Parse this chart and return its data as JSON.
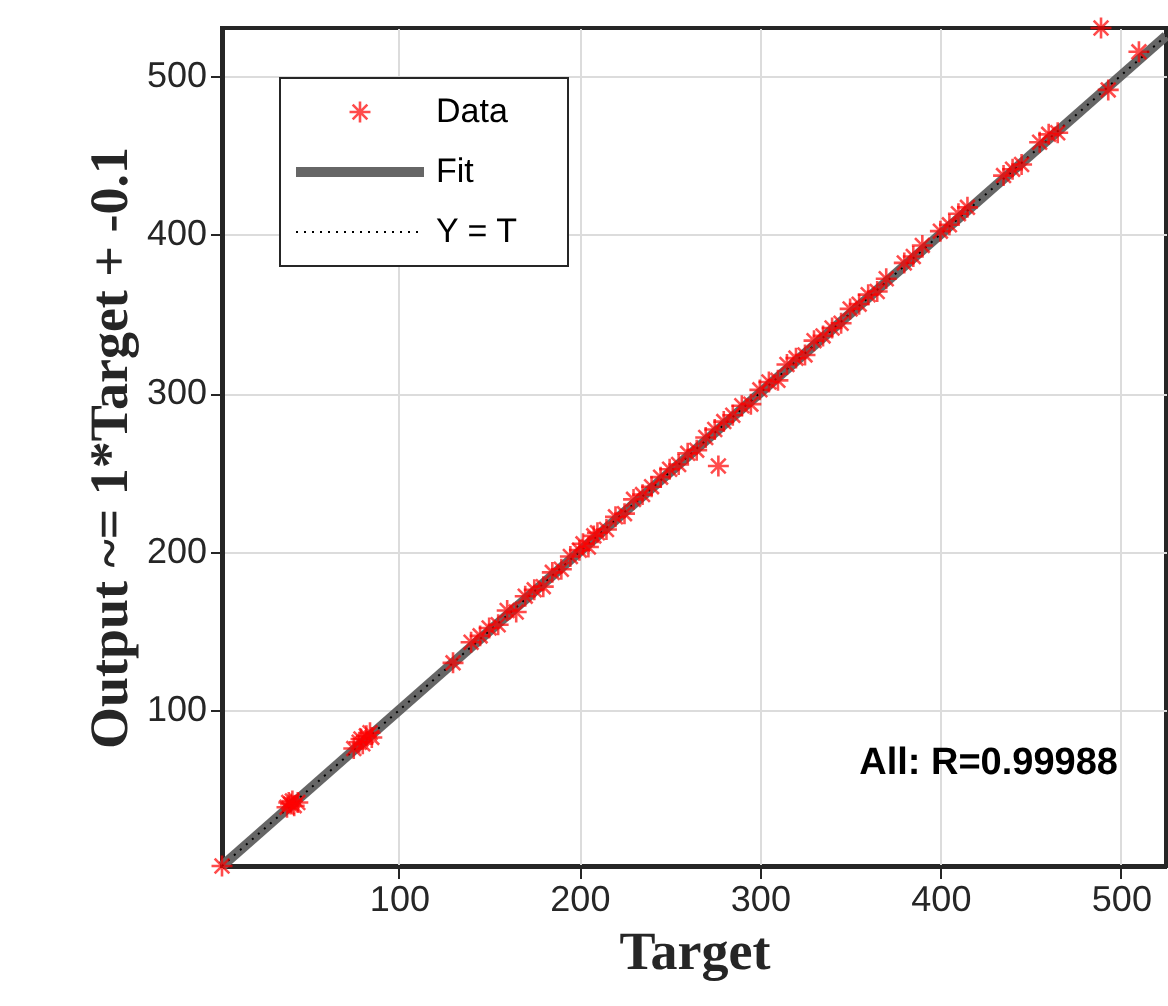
{
  "chart_data": {
    "type": "scatter",
    "xlabel": "Target",
    "ylabel": "Output ~= 1*Target + -0.1",
    "xlim": [
      2,
      525
    ],
    "ylim": [
      2,
      530
    ],
    "xticks": [
      100,
      200,
      300,
      400,
      500
    ],
    "yticks": [
      100,
      200,
      300,
      400,
      500
    ],
    "grid": true,
    "legend": "top left",
    "annotations": [
      "All: R=0.99988"
    ],
    "series": [
      {
        "name": "Data",
        "marker": "cross",
        "color": "#ff0000",
        "x": [
          2,
          38,
          40,
          42,
          41,
          44,
          39,
          75,
          78,
          80,
          82,
          85,
          79,
          84,
          130,
          140,
          145,
          150,
          155,
          160,
          165,
          170,
          175,
          180,
          185,
          190,
          195,
          200,
          202,
          205,
          208,
          210,
          215,
          220,
          225,
          230,
          235,
          240,
          245,
          250,
          255,
          260,
          265,
          270,
          275,
          277,
          280,
          285,
          290,
          295,
          300,
          305,
          310,
          315,
          320,
          325,
          330,
          335,
          340,
          345,
          350,
          355,
          360,
          365,
          370,
          380,
          385,
          390,
          400,
          405,
          410,
          415,
          435,
          440,
          445,
          455,
          460,
          465,
          489,
          493,
          510
        ],
        "values": [
          2,
          39,
          41,
          40,
          43,
          42,
          42,
          76,
          80,
          79,
          84,
          83,
          82,
          86,
          130,
          143,
          147,
          152,
          154,
          163,
          162,
          172,
          176,
          178,
          187,
          189,
          197,
          201,
          205,
          203,
          210,
          212,
          214,
          222,
          224,
          233,
          236,
          241,
          247,
          252,
          255,
          262,
          264,
          272,
          277,
          254,
          282,
          286,
          292,
          293,
          302,
          307,
          308,
          318,
          322,
          324,
          333,
          336,
          341,
          344,
          353,
          356,
          362,
          364,
          372,
          382,
          386,
          393,
          402,
          406,
          413,
          417,
          437,
          441,
          444,
          458,
          463,
          464,
          530,
          491,
          515
        ]
      },
      {
        "name": "Fit",
        "type": "line",
        "line_style": "solid",
        "color": "#666666",
        "x": [
          2,
          525
        ],
        "values": [
          2,
          525
        ]
      },
      {
        "name": "Y = T",
        "type": "line",
        "line_style": "dotted",
        "color": "#000000",
        "x": [
          2,
          525
        ],
        "values": [
          2,
          525
        ]
      }
    ]
  }
}
